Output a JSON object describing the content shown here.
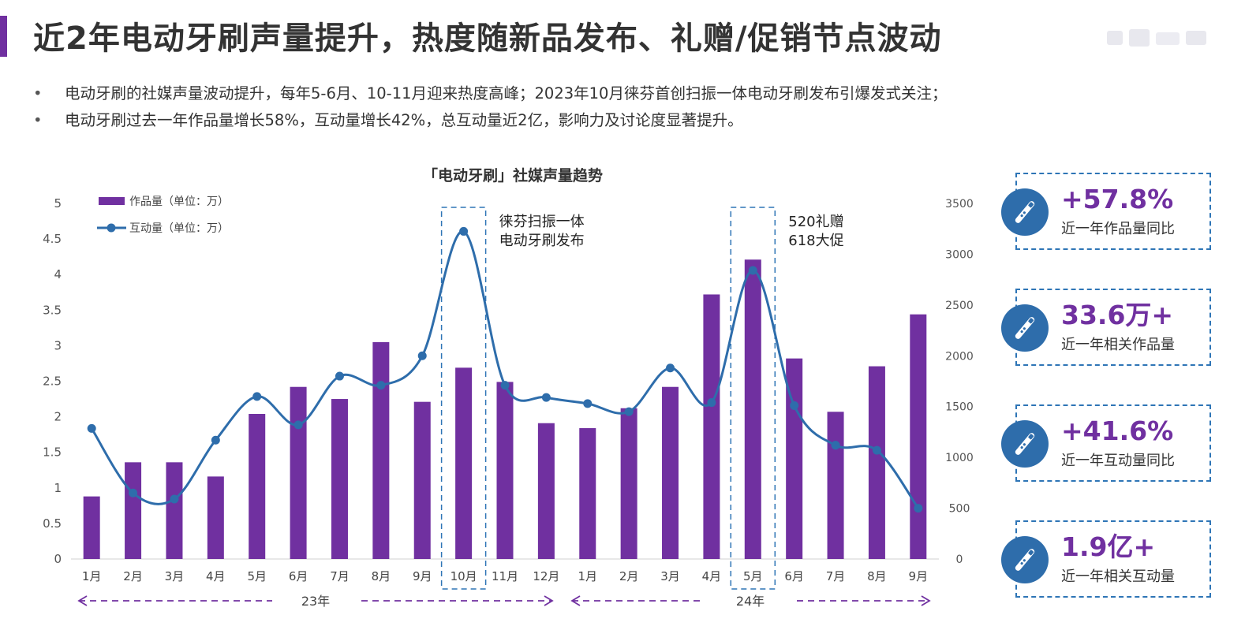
{
  "header": {
    "title": "近2年电动牙刷声量提升，热度随新品发布、礼赠/促销节点波动"
  },
  "bullets": [
    "电动牙刷的社媒声量波动提升，每年5-6月、10-11月迎来热度高峰；2023年10月徕芬首创扫振一体电动牙刷发布引爆发式关注；",
    "电动牙刷过去一年作品量增长58%，互动量增长42%，总互动量近2亿，影响力及讨论度显著提升。"
  ],
  "chart_data": {
    "type": "bar+line",
    "title": "「电动牙刷」社媒声量趋势",
    "categories": [
      "1月",
      "2月",
      "3月",
      "4月",
      "5月",
      "6月",
      "7月",
      "8月",
      "9月",
      "10月",
      "11月",
      "12月",
      "1月",
      "2月",
      "3月",
      "4月",
      "5月",
      "6月",
      "7月",
      "8月",
      "9月"
    ],
    "year_labels": [
      "23年",
      "24年"
    ],
    "series": [
      {
        "name": "作品量（单位：万）",
        "kind": "bar",
        "axis": "left",
        "color": "#7030a0",
        "values": [
          0.88,
          1.36,
          1.36,
          1.16,
          2.04,
          2.42,
          2.25,
          3.05,
          2.21,
          2.69,
          2.49,
          1.91,
          1.84,
          2.12,
          2.42,
          3.72,
          4.21,
          2.82,
          2.07,
          2.71,
          3.44
        ]
      },
      {
        "name": "互动量（单位：万）",
        "kind": "line",
        "axis": "right",
        "color": "#2e6dab",
        "values": [
          1285,
          650,
          590,
          1170,
          1600,
          1320,
          1800,
          1710,
          2000,
          3225,
          1710,
          1590,
          1530,
          1450,
          1880,
          1540,
          2840,
          1510,
          1120,
          1070,
          500
        ]
      }
    ],
    "y_left": {
      "min": 0,
      "max": 5,
      "ticks": [
        "0",
        "0.5",
        "1",
        "1.5",
        "2",
        "2.5",
        "3",
        "3.5",
        "4",
        "4.5",
        "5"
      ]
    },
    "y_right": {
      "min": 0,
      "max": 3500,
      "ticks": [
        "0",
        "500",
        "1000",
        "1500",
        "2000",
        "2500",
        "3000",
        "3500"
      ]
    },
    "annotations": [
      {
        "index": 9,
        "lines": [
          "徕芬扫振一体",
          "电动牙刷发布"
        ]
      },
      {
        "index": 16,
        "lines": [
          "520礼赠",
          "618大促"
        ]
      }
    ],
    "legend_position": "top-left",
    "grid": false
  },
  "kpis": [
    {
      "value": "+57.8%",
      "label": "近一年作品量同比"
    },
    {
      "value": "33.6万+",
      "label": "近一年相关作品量"
    },
    {
      "value": "+41.6%",
      "label": "近一年互动量同比"
    },
    {
      "value": "1.9亿+",
      "label": "近一年相关互动量"
    }
  ],
  "colors": {
    "accent": "#7030a0",
    "line": "#2e6dab",
    "kpi_border": "#2e75b6",
    "text": "#333333"
  },
  "icons": [
    "electric-toothbrush-icon"
  ]
}
